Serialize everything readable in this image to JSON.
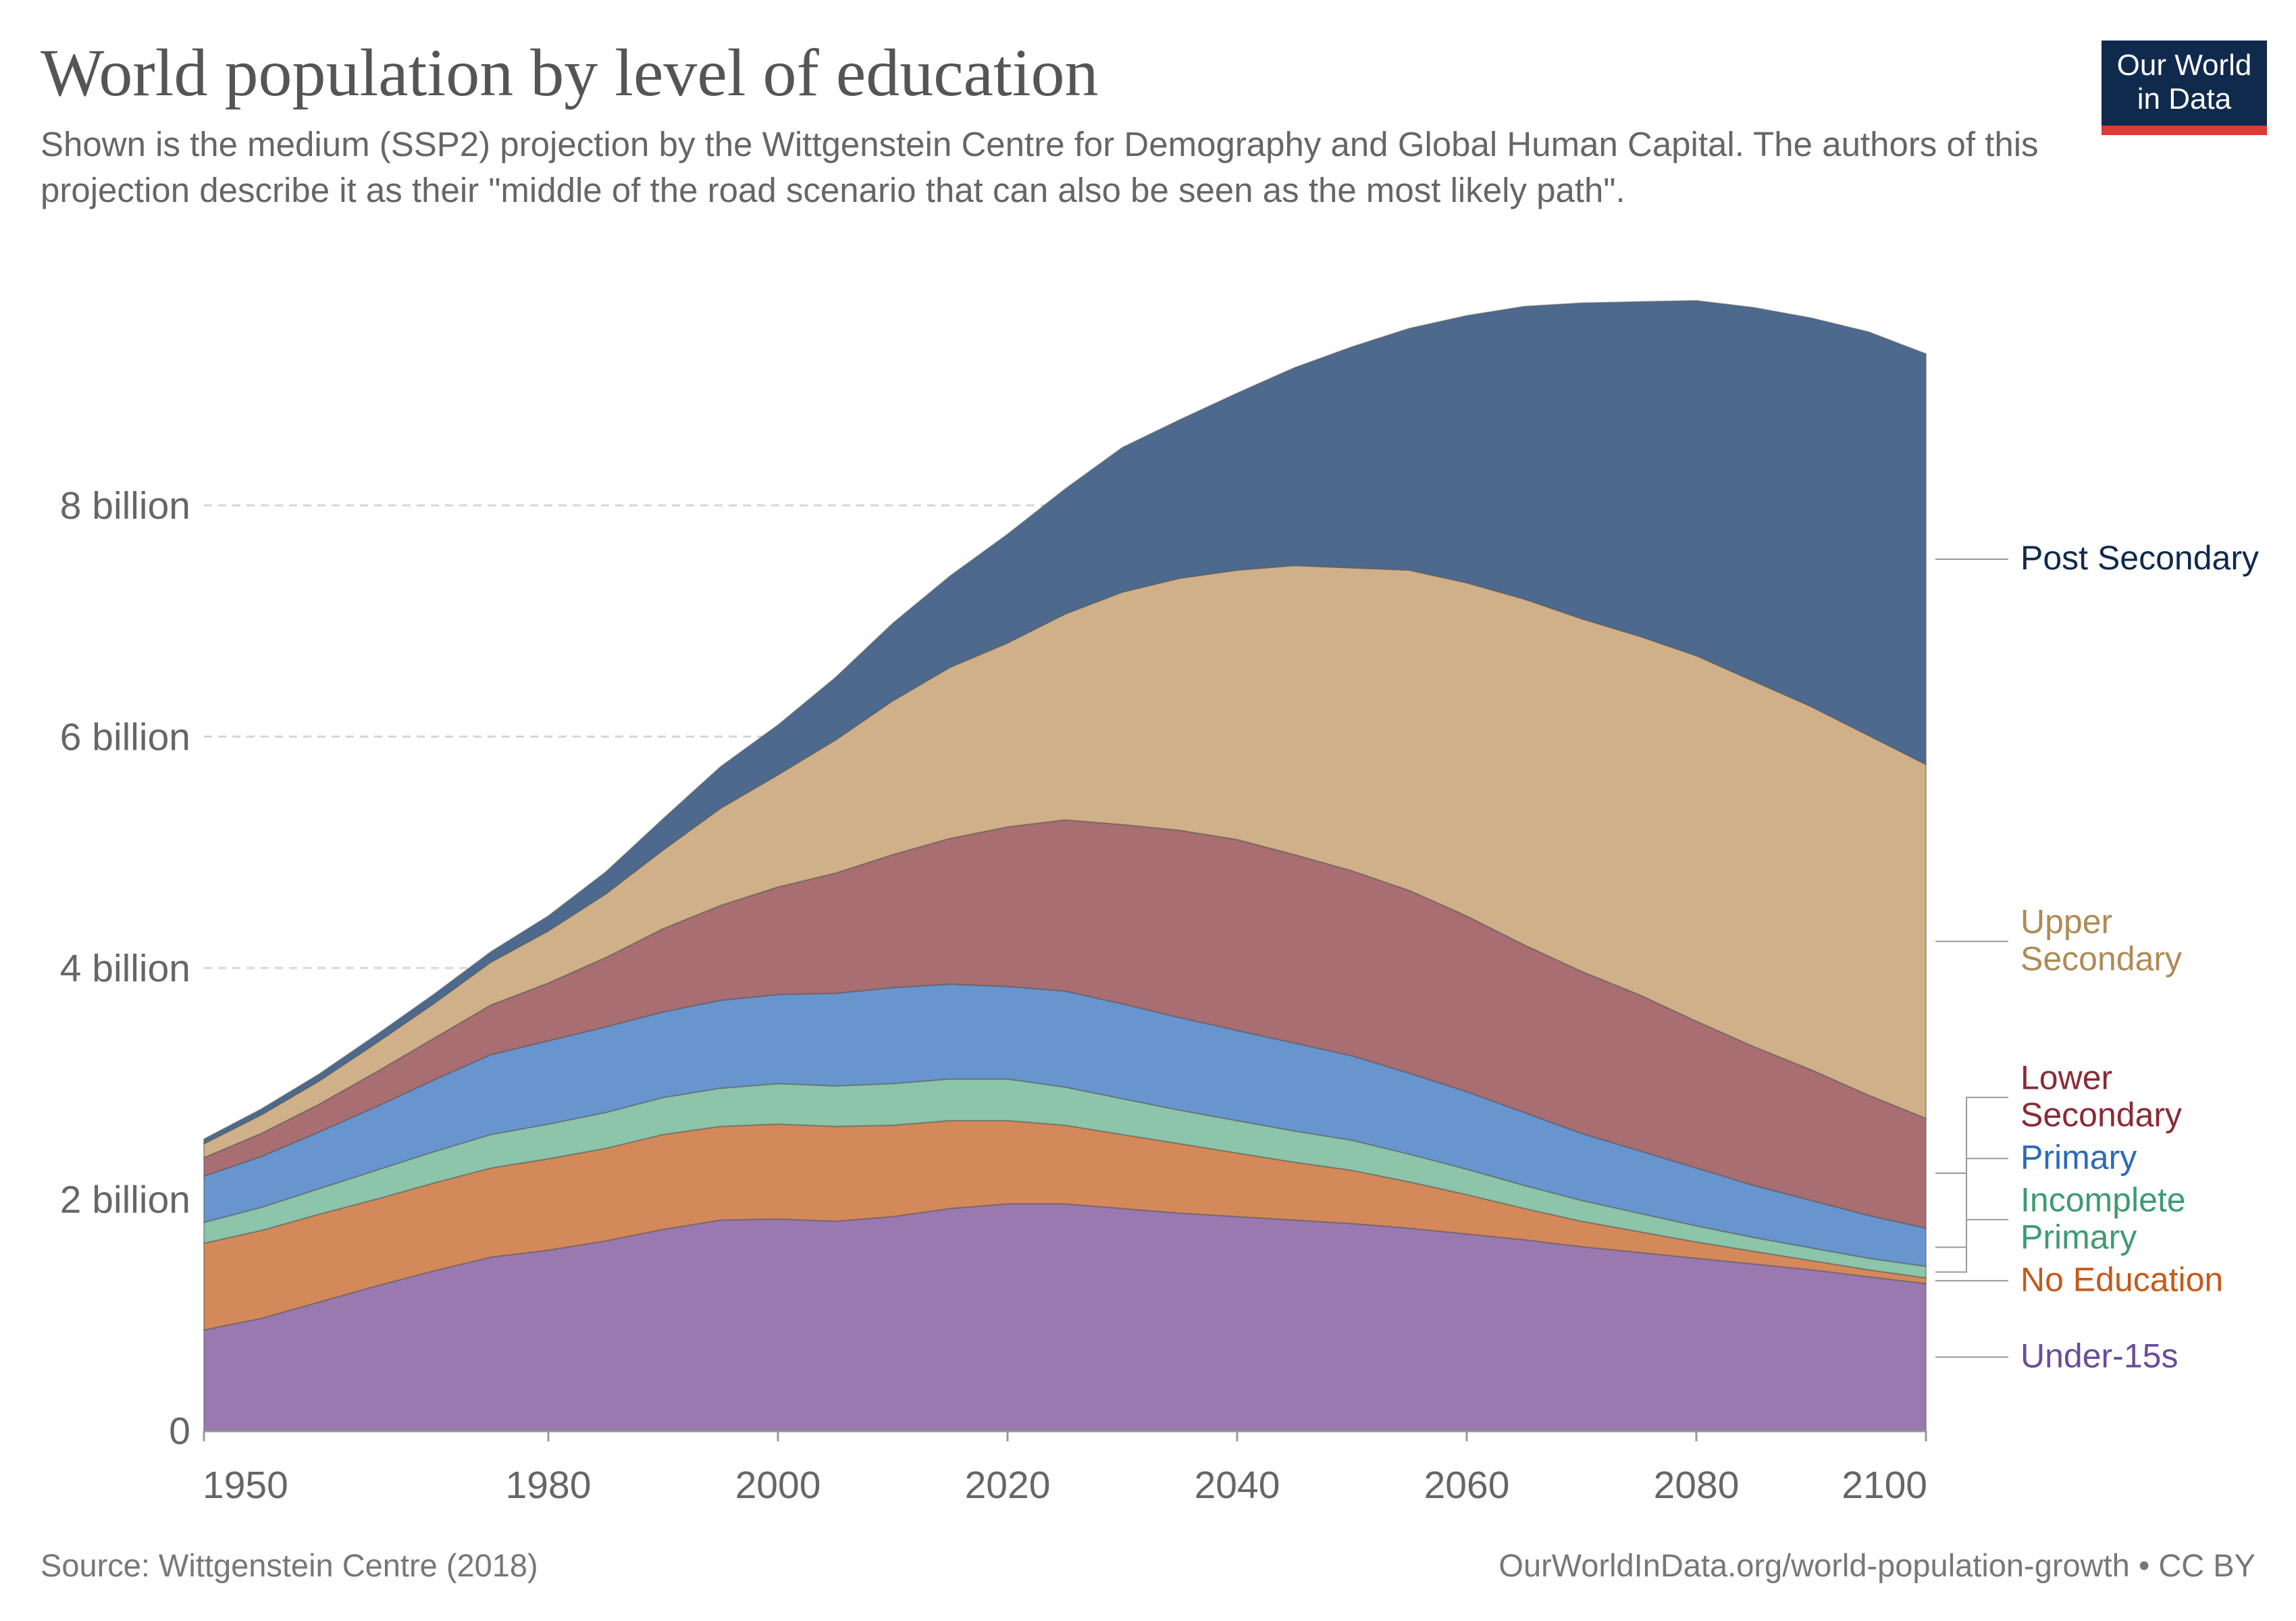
{
  "header": {
    "title": "World population by level of education",
    "subtitle": "Shown is the medium (SSP2) projection by the Wittgenstein Centre for Demography and Global Human Capital. The authors of this projection describe it as their \"middle of the road scenario that can also be seen as the most likely path\".",
    "logo_line1": "Our World",
    "logo_line2": "in Data"
  },
  "footer": {
    "source": "Source: Wittgenstein Centre (2018)",
    "credit": "OurWorldInData.org/world-population-growth • CC BY"
  },
  "colors": {
    "under15": "#9a79b1",
    "no_education": "#d4895b",
    "incomplete_primary": "#8cc5a9",
    "primary": "#6995cf",
    "lower_secondary": "#a86e72",
    "upper_secondary": "#d0b089",
    "post_secondary": "#4d6a8e",
    "logo_bg": "#0f2a4d",
    "logo_accent": "#dc3a32"
  },
  "chart_data": {
    "type": "area",
    "stacked": true,
    "title": "World population by level of education",
    "xlabel": "",
    "ylabel": "",
    "xlim": [
      1950,
      2100
    ],
    "ylim": [
      0,
      9.8
    ],
    "x_ticks": [
      1950,
      1980,
      2000,
      2020,
      2040,
      2060,
      2080,
      2100
    ],
    "x_tick_labels": [
      "1950",
      "1980",
      "2000",
      "2020",
      "2040",
      "2060",
      "2080",
      "2100"
    ],
    "y_ticks": [
      0,
      2,
      4,
      6,
      8
    ],
    "y_tick_labels": [
      "0",
      "2 billion",
      "4 billion",
      "6 billion",
      "8 billion"
    ],
    "grid": "horizontal dashed",
    "legend": "right, inline labels",
    "x": [
      1950,
      1955,
      1960,
      1965,
      1970,
      1975,
      1980,
      1985,
      1990,
      1995,
      2000,
      2005,
      2010,
      2015,
      2020,
      2025,
      2030,
      2035,
      2040,
      2045,
      2050,
      2055,
      2060,
      2065,
      2070,
      2075,
      2080,
      2085,
      2090,
      2095,
      2100
    ],
    "series": [
      {
        "name": "Under-15s",
        "color_key": "under15",
        "label_lines": [
          "Under-15s"
        ],
        "values": [
          0.87,
          0.97,
          1.11,
          1.25,
          1.38,
          1.5,
          1.56,
          1.64,
          1.74,
          1.82,
          1.83,
          1.81,
          1.85,
          1.92,
          1.96,
          1.96,
          1.92,
          1.88,
          1.85,
          1.82,
          1.79,
          1.75,
          1.7,
          1.65,
          1.59,
          1.54,
          1.49,
          1.44,
          1.39,
          1.33,
          1.27
        ]
      },
      {
        "name": "No Education",
        "color_key": "no_education",
        "label_lines": [
          "No Education"
        ],
        "values": [
          0.75,
          0.76,
          0.76,
          0.75,
          0.76,
          0.77,
          0.79,
          0.8,
          0.82,
          0.81,
          0.82,
          0.82,
          0.79,
          0.76,
          0.72,
          0.68,
          0.64,
          0.6,
          0.55,
          0.5,
          0.46,
          0.4,
          0.34,
          0.27,
          0.22,
          0.18,
          0.14,
          0.11,
          0.08,
          0.06,
          0.05
        ]
      },
      {
        "name": "Incomplete Primary",
        "color_key": "incomplete_primary",
        "label_lines": [
          "Incomplete",
          "Primary"
        ],
        "values": [
          0.18,
          0.2,
          0.22,
          0.25,
          0.27,
          0.29,
          0.3,
          0.31,
          0.32,
          0.33,
          0.35,
          0.35,
          0.36,
          0.36,
          0.36,
          0.33,
          0.31,
          0.29,
          0.28,
          0.27,
          0.26,
          0.24,
          0.22,
          0.2,
          0.18,
          0.16,
          0.14,
          0.12,
          0.11,
          0.1,
          0.1
        ]
      },
      {
        "name": "Primary",
        "color_key": "primary",
        "label_lines": [
          "Primary"
        ],
        "values": [
          0.4,
          0.44,
          0.49,
          0.55,
          0.62,
          0.69,
          0.72,
          0.74,
          0.74,
          0.76,
          0.77,
          0.8,
          0.83,
          0.82,
          0.8,
          0.83,
          0.82,
          0.8,
          0.78,
          0.76,
          0.73,
          0.7,
          0.67,
          0.63,
          0.58,
          0.54,
          0.5,
          0.45,
          0.41,
          0.37,
          0.33
        ]
      },
      {
        "name": "Lower Secondary",
        "color_key": "lower_secondary",
        "label_lines": [
          "Lower",
          "Secondary"
        ],
        "values": [
          0.16,
          0.2,
          0.24,
          0.3,
          0.36,
          0.43,
          0.5,
          0.6,
          0.72,
          0.82,
          0.93,
          1.04,
          1.15,
          1.26,
          1.38,
          1.48,
          1.55,
          1.62,
          1.65,
          1.63,
          1.6,
          1.58,
          1.52,
          1.45,
          1.4,
          1.35,
          1.27,
          1.2,
          1.13,
          1.04,
          0.95
        ]
      },
      {
        "name": "Upper Secondary",
        "color_key": "upper_secondary",
        "label_lines": [
          "Upper",
          "Secondary"
        ],
        "values": [
          0.12,
          0.16,
          0.2,
          0.25,
          0.3,
          0.37,
          0.45,
          0.55,
          0.68,
          0.84,
          0.97,
          1.15,
          1.33,
          1.48,
          1.59,
          1.78,
          2.01,
          2.18,
          2.33,
          2.5,
          2.62,
          2.77,
          2.88,
          2.99,
          3.05,
          3.1,
          3.16,
          3.16,
          3.14,
          3.11,
          3.06
        ]
      },
      {
        "name": "Post Secondary",
        "color_key": "post_secondary",
        "label_lines": [
          "Post Secondary"
        ],
        "values": [
          0.04,
          0.05,
          0.06,
          0.07,
          0.08,
          0.09,
          0.13,
          0.19,
          0.27,
          0.36,
          0.43,
          0.54,
          0.67,
          0.79,
          0.94,
          1.08,
          1.25,
          1.37,
          1.53,
          1.71,
          1.91,
          2.09,
          2.31,
          2.53,
          2.73,
          2.89,
          3.07,
          3.23,
          3.36,
          3.49,
          3.55
        ]
      }
    ]
  }
}
